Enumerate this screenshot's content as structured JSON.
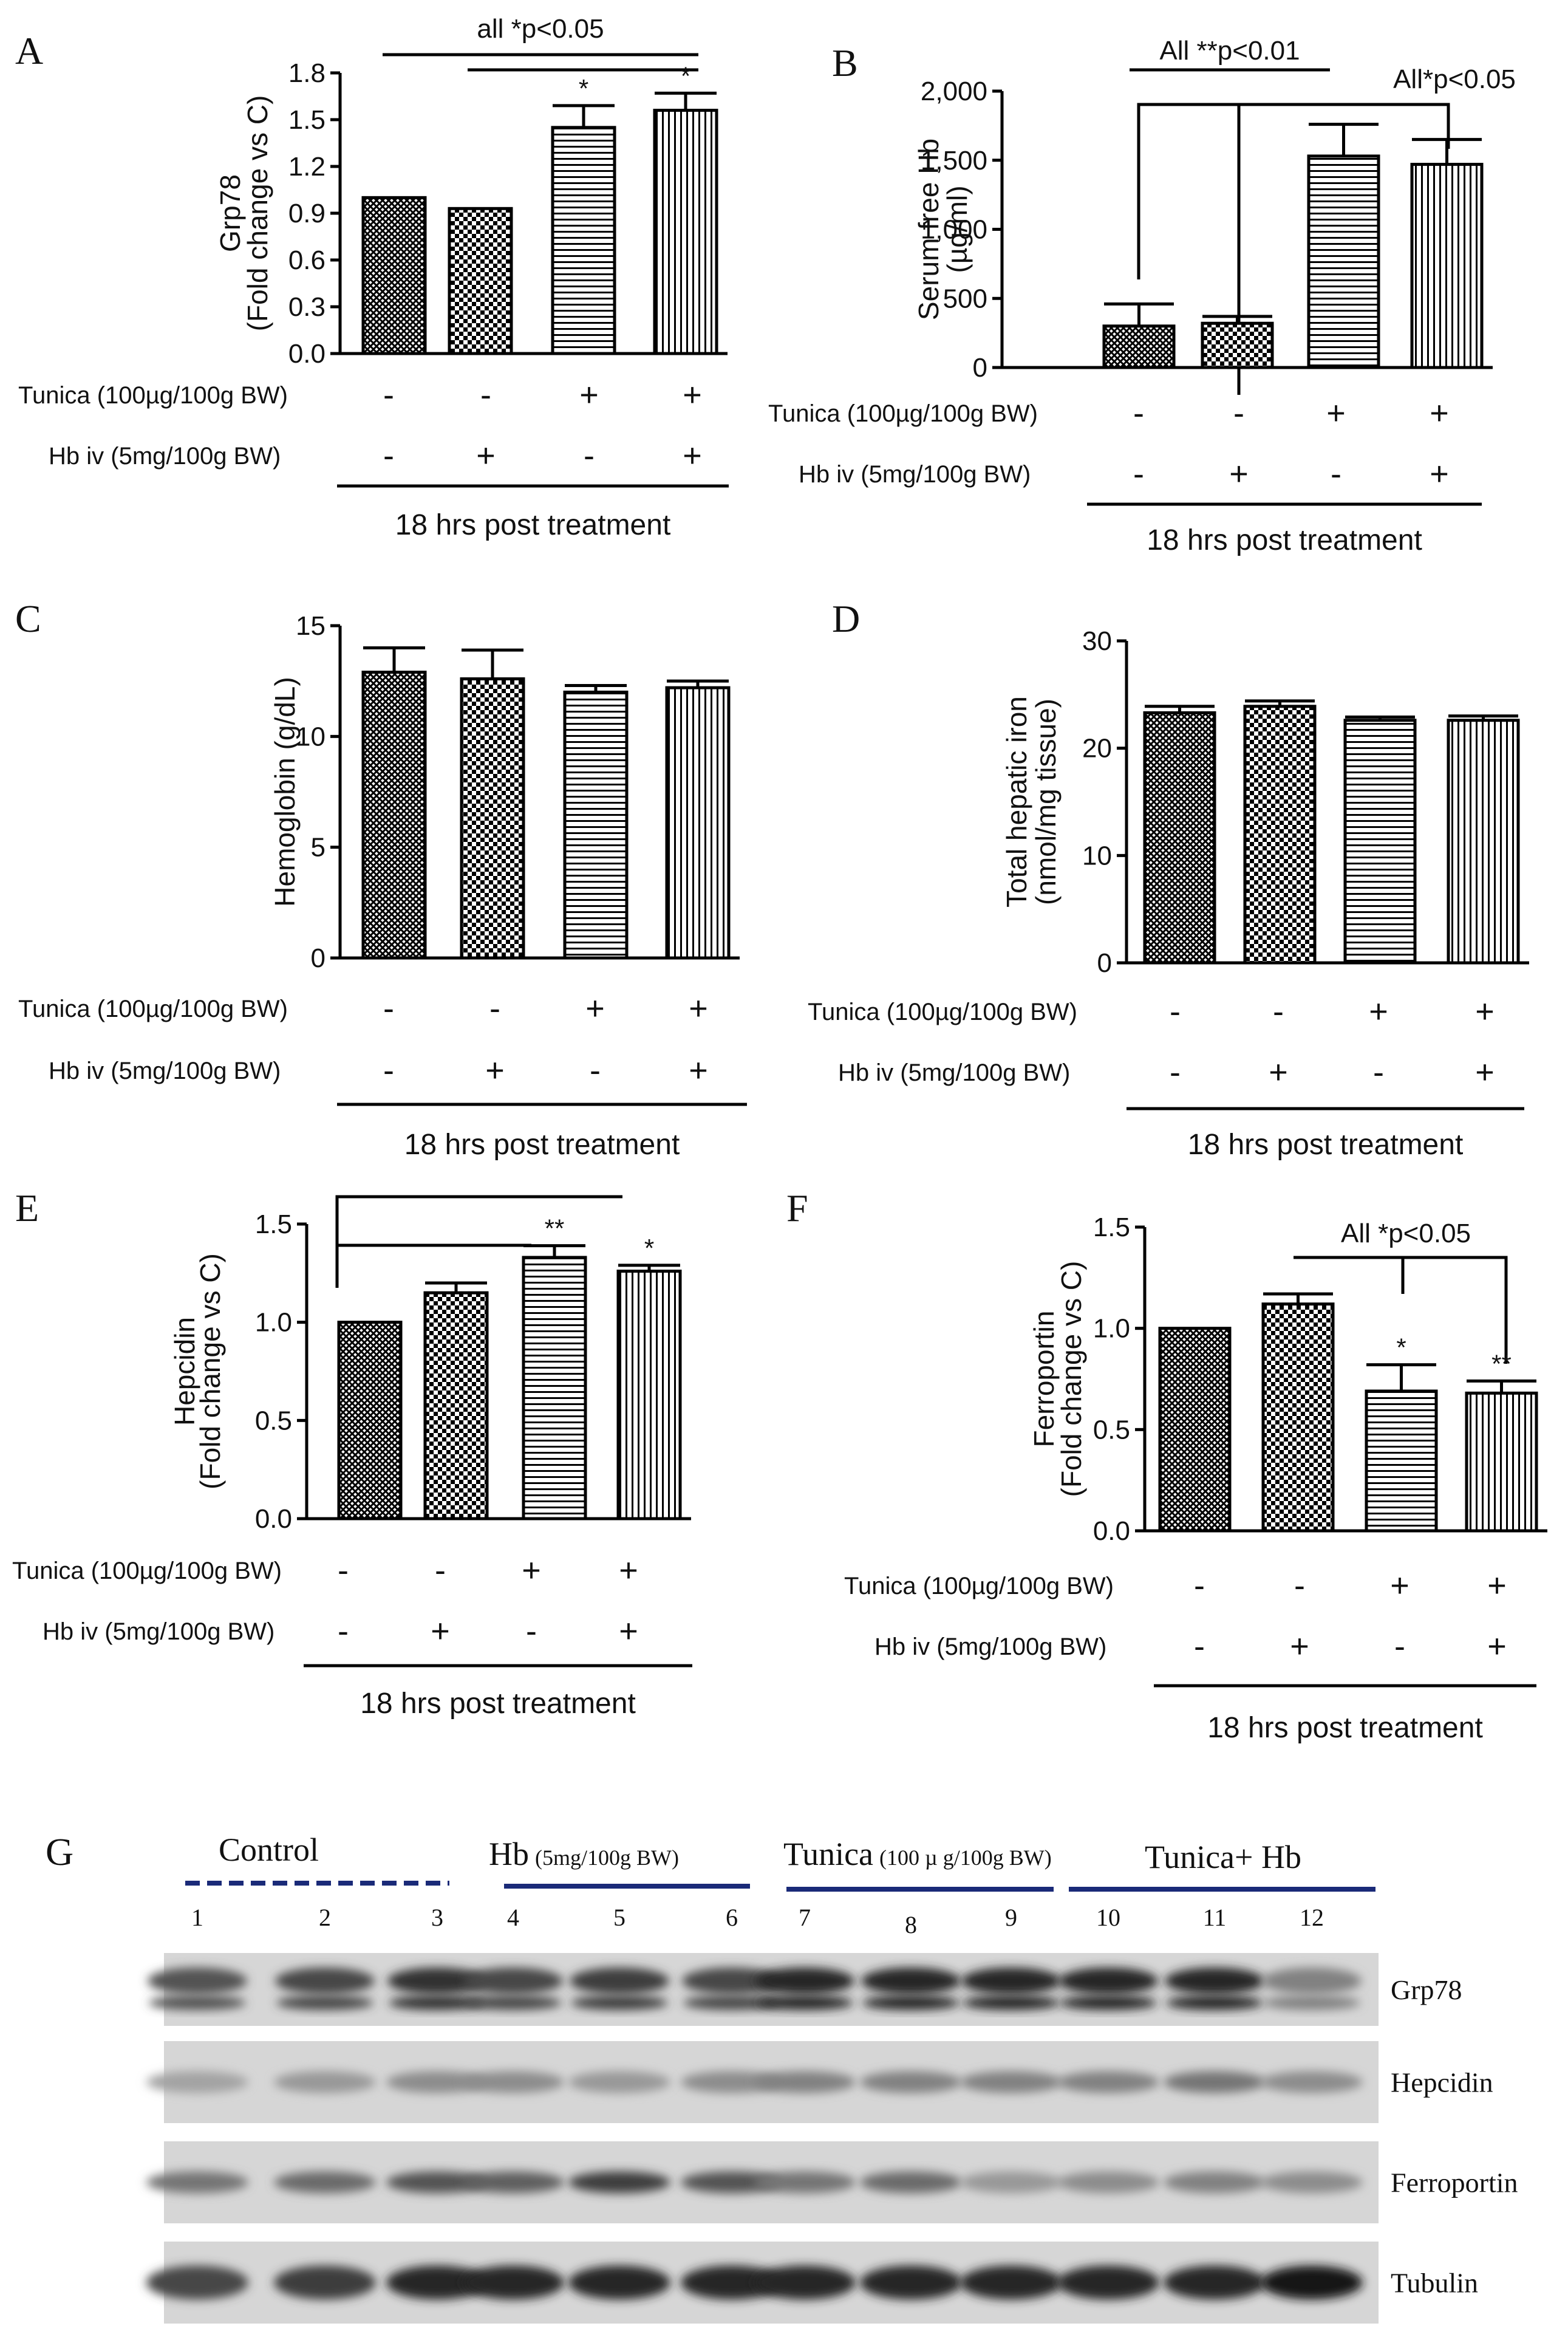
{
  "row_labels": {
    "tunica": "Tunica (100µg/100g BW)",
    "hb": "Hb iv (5mg/100g BW)",
    "post": "18 hrs post treatment"
  },
  "treatment_symbols": {
    "tunica": [
      "-",
      "-",
      "+",
      "+"
    ],
    "hb": [
      "-",
      "+",
      "-",
      "+"
    ]
  },
  "panels": [
    {
      "letter": "A",
      "annotations": [
        "all *p<0.05"
      ]
    },
    {
      "letter": "B",
      "annotations": [
        "All **p<0.01",
        "All*p<0.05"
      ]
    },
    {
      "letter": "C",
      "annotations": []
    },
    {
      "letter": "D",
      "annotations": []
    },
    {
      "letter": "E",
      "annotations": []
    },
    {
      "letter": "F",
      "annotations": [
        "All *p<0.05"
      ]
    },
    {
      "letter": "G",
      "annotations": []
    }
  ],
  "patterns": {
    "fill_color": "#000000",
    "order": [
      "crosshatch",
      "checker",
      "horizontal",
      "vertical"
    ]
  },
  "chart_data": [
    {
      "type": "bar",
      "panel": "A",
      "ylabel": [
        "Grp78",
        "(Fold change vs C)"
      ],
      "ylim": [
        0,
        1.8
      ],
      "yticks": [
        "0.0",
        "0.3",
        "0.6",
        "0.9",
        "1.2",
        "1.5",
        "1.8"
      ],
      "values": [
        1.0,
        0.93,
        1.45,
        1.56
      ],
      "errors": [
        0,
        0,
        0.14,
        0.11
      ],
      "stars": [
        "",
        "",
        "*",
        "*"
      ]
    },
    {
      "type": "bar",
      "panel": "B",
      "ylabel": [
        "Serum free Hb",
        "(µg/ml)"
      ],
      "ylim": [
        0,
        2000
      ],
      "yticks": [
        "0",
        "500",
        "1,000",
        "1,500",
        "2,000"
      ],
      "values": [
        300,
        320,
        1530,
        1470
      ],
      "errors": [
        160,
        50,
        230,
        180
      ],
      "stars": [
        "",
        "",
        "",
        ""
      ]
    },
    {
      "type": "bar",
      "panel": "C",
      "ylabel": [
        "Hemoglobin (g/dL)"
      ],
      "ylim": [
        0,
        15
      ],
      "yticks": [
        "0",
        "5",
        "10",
        "15"
      ],
      "values": [
        12.9,
        12.6,
        12.0,
        12.2
      ],
      "errors": [
        1.1,
        1.3,
        0.3,
        0.3
      ],
      "stars": [
        "",
        "",
        "",
        ""
      ]
    },
    {
      "type": "bar",
      "panel": "D",
      "ylabel": [
        "Total hepatic iron",
        "(nmol/mg tissue)"
      ],
      "ylim": [
        0,
        30
      ],
      "yticks": [
        "0",
        "10",
        "20",
        "30"
      ],
      "values": [
        23.3,
        23.9,
        22.6,
        22.6
      ],
      "errors": [
        0.6,
        0.5,
        0.3,
        0.4
      ],
      "stars": [
        "",
        "",
        "",
        ""
      ]
    },
    {
      "type": "bar",
      "panel": "E",
      "ylabel": [
        "Hepcidin",
        "(Fold change vs C)"
      ],
      "ylim": [
        0,
        1.5
      ],
      "yticks": [
        "0.0",
        "0.5",
        "1.0",
        "1.5"
      ],
      "values": [
        1.0,
        1.15,
        1.33,
        1.26
      ],
      "errors": [
        0,
        0.05,
        0.06,
        0.03
      ],
      "stars": [
        "",
        "",
        "**",
        "*"
      ]
    },
    {
      "type": "bar",
      "panel": "F",
      "ylabel": [
        "Ferroportin",
        "(Fold change vs C)"
      ],
      "ylim": [
        0,
        1.5
      ],
      "yticks": [
        "0.0",
        "0.5",
        "1.0",
        "1.5"
      ],
      "values": [
        1.0,
        1.12,
        0.69,
        0.68
      ],
      "errors": [
        0,
        0.05,
        0.13,
        0.06
      ],
      "stars": [
        "",
        "",
        "*",
        "**"
      ]
    }
  ],
  "western": {
    "groups": [
      {
        "label": "Control",
        "sub": ""
      },
      {
        "label": "Hb",
        "sub": "(5mg/100g  BW)"
      },
      {
        "label": "Tunica",
        "sub": "(100 µ g/100g BW)"
      },
      {
        "label": "Tunica+ Hb",
        "sub": ""
      }
    ],
    "lanes": [
      "1",
      "2",
      "3",
      "4",
      "5",
      "6",
      "7",
      "8",
      "9",
      "10",
      "11",
      "12"
    ],
    "blots": [
      {
        "name": "Grp78",
        "intensity": [
          0.75,
          0.8,
          0.9,
          0.8,
          0.85,
          0.8,
          0.95,
          0.95,
          0.95,
          0.95,
          0.95,
          0.55
        ]
      },
      {
        "name": "Hepcidin",
        "intensity": [
          0.4,
          0.45,
          0.5,
          0.5,
          0.45,
          0.5,
          0.55,
          0.55,
          0.55,
          0.55,
          0.6,
          0.5
        ]
      },
      {
        "name": "Ferroportin",
        "intensity": [
          0.6,
          0.65,
          0.75,
          0.7,
          0.85,
          0.75,
          0.6,
          0.65,
          0.45,
          0.5,
          0.55,
          0.5
        ]
      },
      {
        "name": "Tubulin",
        "intensity": [
          0.8,
          0.85,
          0.95,
          0.95,
          0.95,
          0.95,
          0.95,
          0.95,
          0.95,
          0.95,
          0.95,
          1.0
        ]
      }
    ]
  }
}
